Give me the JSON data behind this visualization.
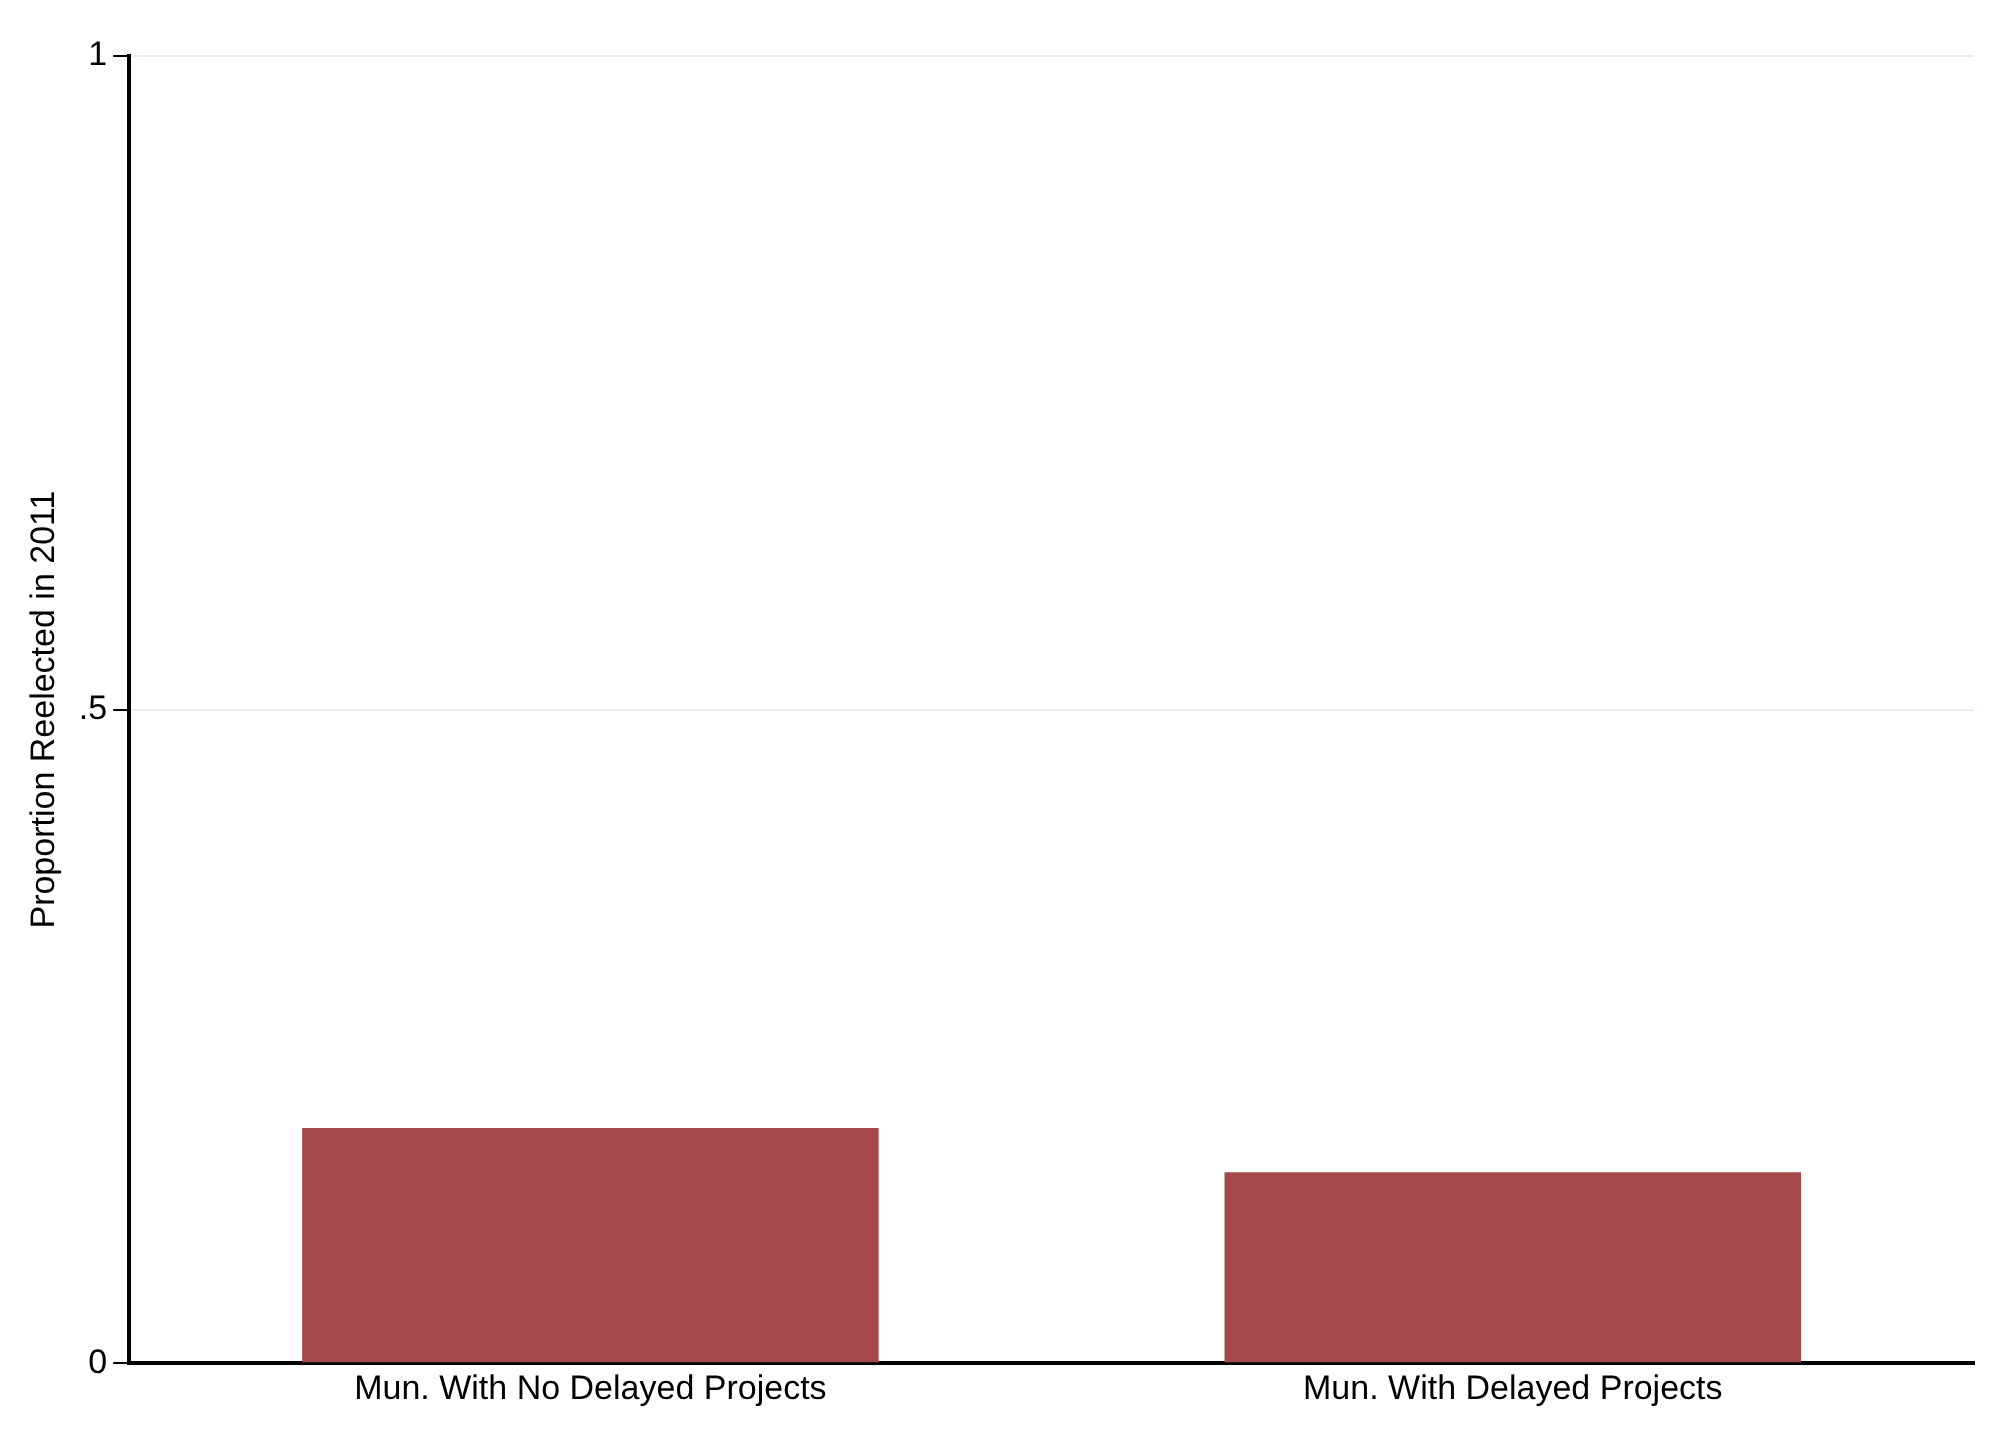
{
  "chart_data": {
    "type": "bar",
    "ylabel": "Proportion Reelected in 2011",
    "categories": [
      "Mun. With No Delayed Projects",
      "Mun. With Delayed Projects"
    ],
    "values": [
      0.18,
      0.146
    ],
    "color": "#a4484a",
    "ylim": [
      0,
      1
    ],
    "yticks": [
      0,
      {
        "value": 0.5,
        "label": ".5"
      },
      1
    ],
    "grid": "y"
  }
}
